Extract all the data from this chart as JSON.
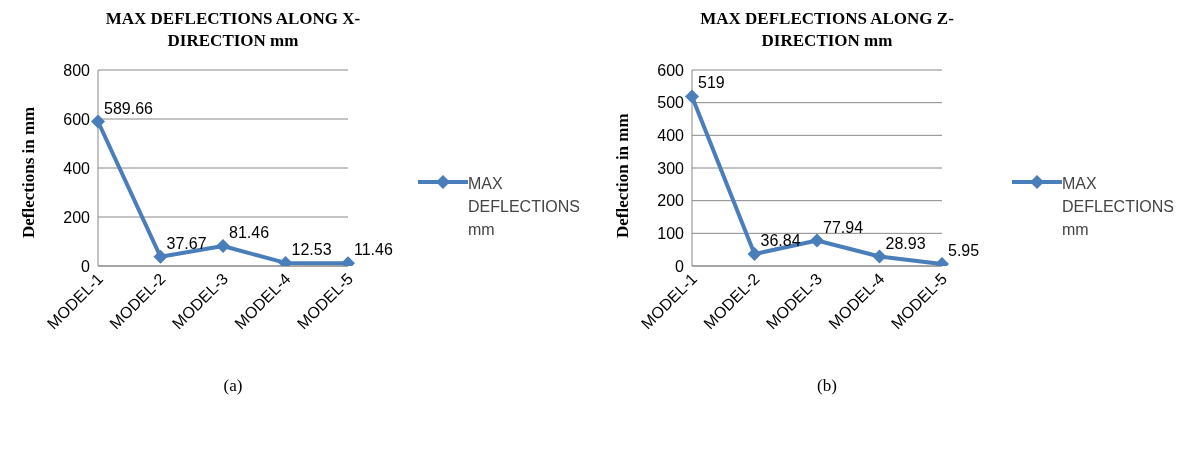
{
  "chart_data": [
    {
      "type": "line",
      "title": "MAX DEFLECTIONS  ALONG X-DIRECTION  mm",
      "ylabel": "Deflections in mm",
      "categories": [
        "MODEL-1",
        "MODEL-2",
        "MODEL-3",
        "MODEL-4",
        "MODEL-5"
      ],
      "series": [
        {
          "name": "MAX DEFLECTIONS mm",
          "color": "#4a7ebb",
          "values": [
            589.66,
            37.67,
            81.46,
            12.53,
            11.46
          ]
        }
      ],
      "ylim": [
        0,
        800
      ],
      "yticks": [
        0,
        200,
        400,
        600,
        800
      ],
      "grid": "y",
      "legend": "right",
      "marker": "diamond",
      "line_style": "solid",
      "data_labels": true,
      "annotations": [
        "(a)"
      ]
    },
    {
      "type": "line",
      "title": "MAX DEFLECTIONS ALONG Z-DIRECTION  mm",
      "ylabel": "Deflection in mm",
      "categories": [
        "MODEL-1",
        "MODEL-2",
        "MODEL-3",
        "MODEL-4",
        "MODEL-5"
      ],
      "series": [
        {
          "name": "MAX DEFLECTIONS mm",
          "color": "#4a7ebb",
          "values": [
            519,
            36.84,
            77.94,
            28.93,
            5.95
          ]
        }
      ],
      "ylim": [
        0,
        600
      ],
      "yticks": [
        0,
        100,
        200,
        300,
        400,
        500,
        600
      ],
      "grid": "y",
      "legend": "right",
      "marker": "diamond",
      "line_style": "solid",
      "data_labels": true,
      "annotations": [
        "(b)"
      ]
    }
  ]
}
